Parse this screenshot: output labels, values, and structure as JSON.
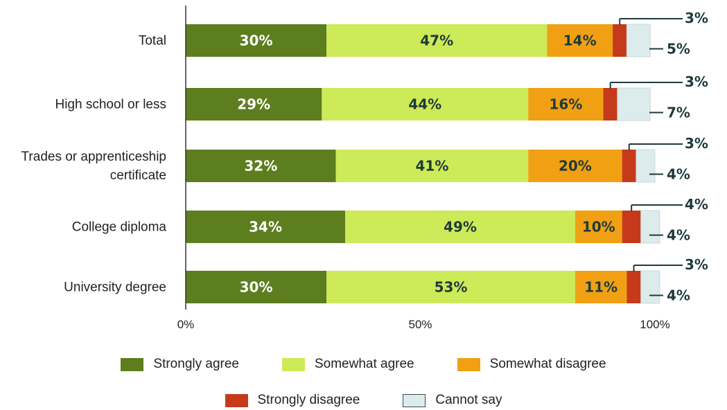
{
  "chart_data": {
    "type": "bar",
    "orientation": "horizontal",
    "stacked": true,
    "title": "",
    "xlabel": "",
    "ylabel": "",
    "xlim": [
      0,
      100
    ],
    "xticks": [
      "0%",
      "50%",
      "100%"
    ],
    "grid": false,
    "legend_placement": "bottom",
    "categories": [
      "Total",
      "High school or less",
      "Trades or apprenticeship certificate",
      "College diploma",
      "University degree"
    ],
    "series": [
      {
        "name": "Strongly agree",
        "color": "#5d7e1e",
        "text_color": "#ffffff",
        "values": [
          30,
          29,
          32,
          34,
          30
        ]
      },
      {
        "name": "Somewhat agree",
        "color": "#cdea59",
        "text_color": "#1e3a3a",
        "values": [
          47,
          44,
          41,
          49,
          53
        ]
      },
      {
        "name": "Somewhat disagree",
        "color": "#f0a012",
        "text_color": "#1e3a3a",
        "values": [
          14,
          16,
          20,
          10,
          11
        ]
      },
      {
        "name": "Strongly disagree",
        "color": "#c63a1b",
        "text_color": "#ffffff",
        "values": [
          3,
          3,
          3,
          4,
          3
        ]
      },
      {
        "name": "Cannot say",
        "color": "#dcebec",
        "text_color": "#1e3a3a",
        "values": [
          5,
          7,
          4,
          4,
          4
        ]
      }
    ],
    "annotations": {
      "strongly_disagree_labels": [
        "3%",
        "3%",
        "3%",
        "4%",
        "3%"
      ],
      "cannot_say_labels": [
        "5%",
        "7%",
        "4%",
        "4%",
        "4%"
      ]
    }
  },
  "legend": {
    "row1": [
      "Strongly agree",
      "Somewhat agree",
      "Somewhat disagree"
    ],
    "row2": [
      "Strongly disagree",
      "Cannot say"
    ]
  }
}
